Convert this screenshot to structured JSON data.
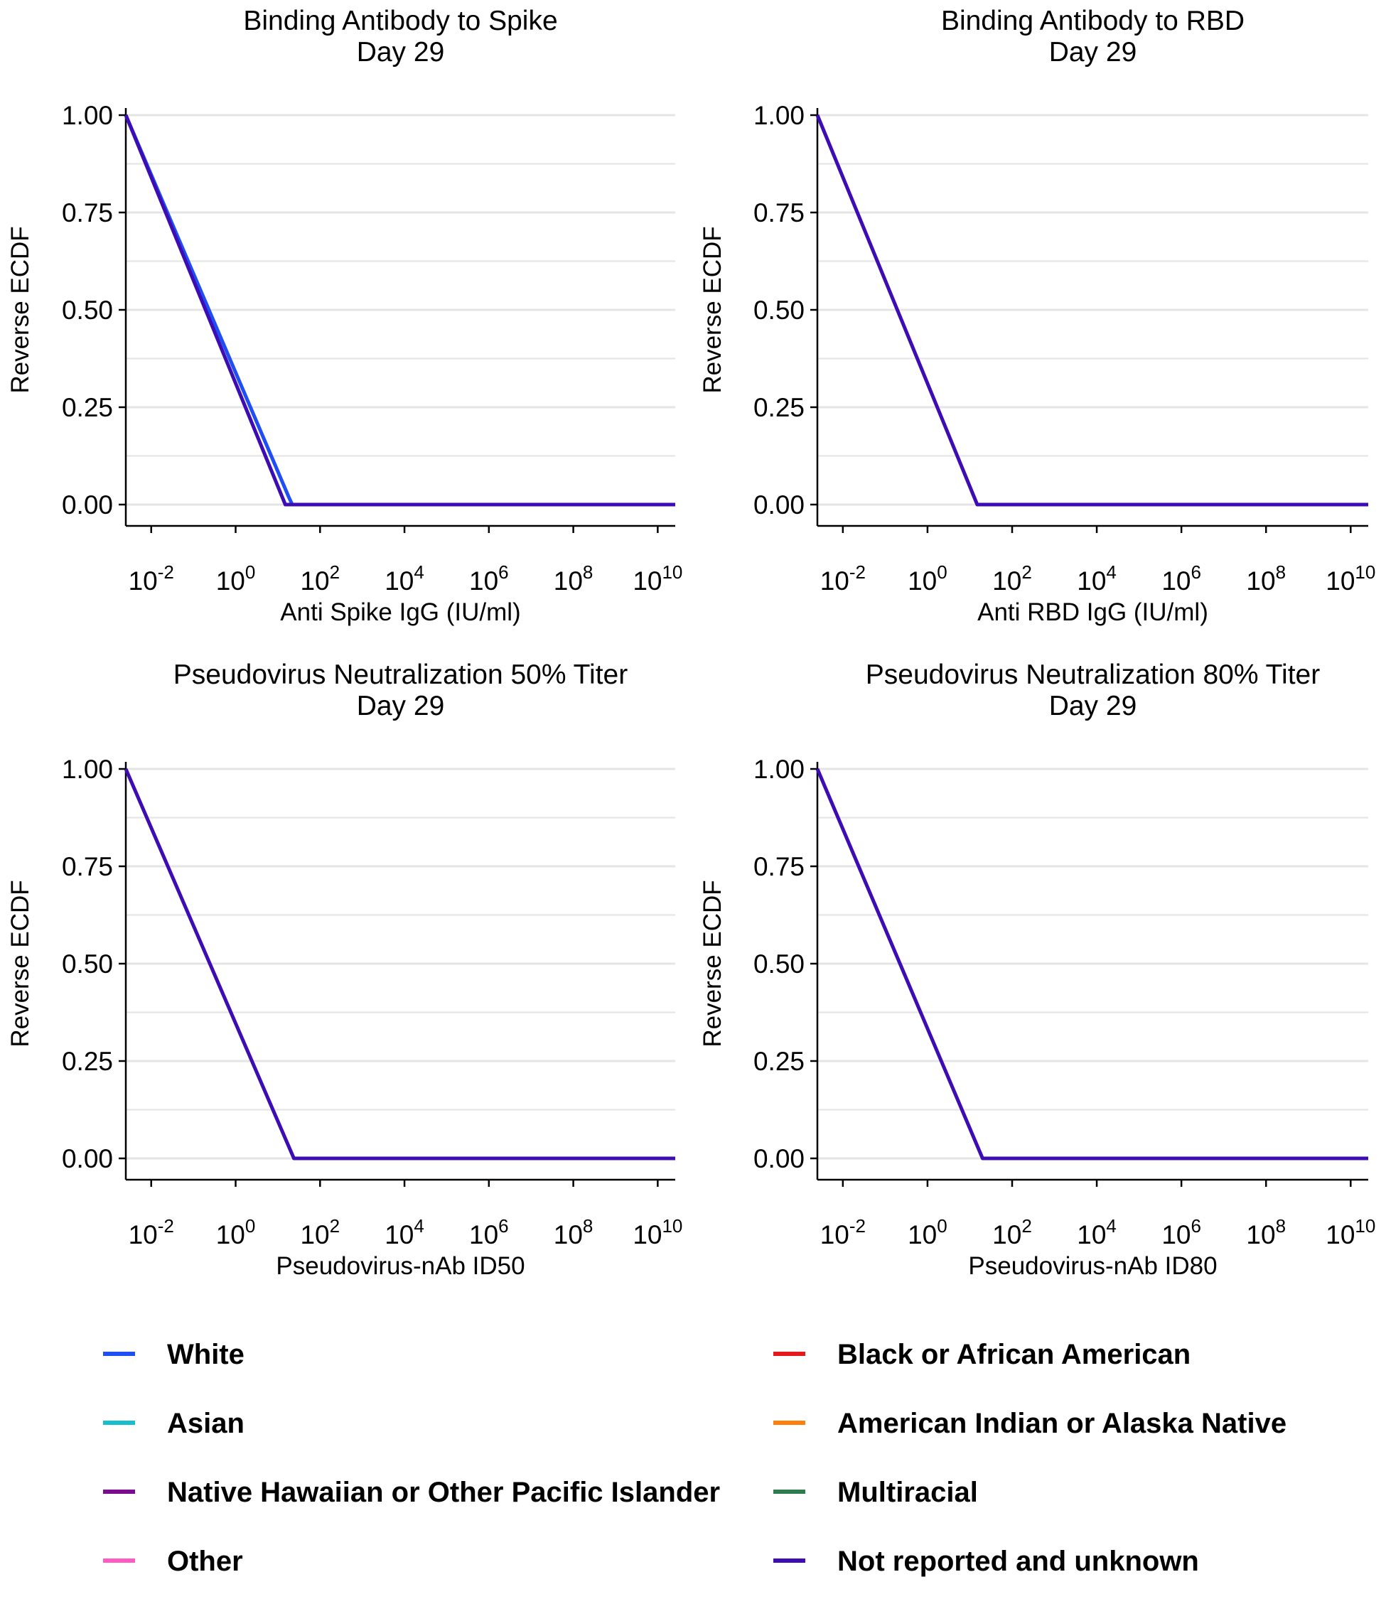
{
  "chart_data": [
    {
      "type": "line",
      "title": "Binding Antibody to Spike",
      "subtitle": "Day 29",
      "xlabel": "Anti Spike IgG (IU/ml)",
      "ylabel": "Reverse ECDF",
      "x_scale": "log10",
      "xlim": [
        0.0025,
        26000000000.0
      ],
      "ylim": [
        0,
        1
      ],
      "x_ticks": [
        0.01,
        1,
        100,
        10000,
        1000000,
        100000000,
        10000000000
      ],
      "x_tick_labels": [
        "10^-2",
        "10^0",
        "10^2",
        "10^4",
        "10^6",
        "10^8",
        "10^10"
      ],
      "y_ticks": [
        0,
        0.25,
        0.5,
        0.75,
        1
      ],
      "y_tick_labels": [
        "0.00",
        "0.25",
        "0.50",
        "0.75",
        "1.00"
      ],
      "grid": "horizontal",
      "series": [
        {
          "name": "White",
          "x": [
            0.0025,
            18,
            22,
            26000000000.0
          ],
          "y": [
            1,
            0.02,
            0,
            0
          ]
        },
        {
          "name": "Not reported and unknown",
          "x": [
            0.0025,
            15,
            26000000000.0
          ],
          "y": [
            1,
            0,
            0
          ]
        }
      ]
    },
    {
      "type": "line",
      "title": "Binding Antibody to RBD",
      "subtitle": "Day 29",
      "xlabel": "Anti RBD IgG (IU/ml)",
      "ylabel": "Reverse ECDF",
      "x_scale": "log10",
      "xlim": [
        0.0025,
        26000000000.0
      ],
      "ylim": [
        0,
        1
      ],
      "x_ticks": [
        0.01,
        1,
        100,
        10000,
        1000000,
        100000000,
        10000000000
      ],
      "x_tick_labels": [
        "10^-2",
        "10^0",
        "10^2",
        "10^4",
        "10^6",
        "10^8",
        "10^10"
      ],
      "y_ticks": [
        0,
        0.25,
        0.5,
        0.75,
        1
      ],
      "y_tick_labels": [
        "0.00",
        "0.25",
        "0.50",
        "0.75",
        "1.00"
      ],
      "grid": "horizontal",
      "series": [
        {
          "name": "Not reported and unknown",
          "x": [
            0.0025,
            15,
            26000000000.0
          ],
          "y": [
            1,
            0,
            0
          ]
        }
      ]
    },
    {
      "type": "line",
      "title": "Pseudovirus Neutralization 50% Titer",
      "subtitle": "Day 29",
      "xlabel": "Pseudovirus-nAb ID50",
      "ylabel": "Reverse ECDF",
      "x_scale": "log10",
      "xlim": [
        0.0025,
        26000000000.0
      ],
      "ylim": [
        0,
        1
      ],
      "x_ticks": [
        0.01,
        1,
        100,
        10000,
        1000000,
        100000000,
        10000000000
      ],
      "x_tick_labels": [
        "10^-2",
        "10^0",
        "10^2",
        "10^4",
        "10^6",
        "10^8",
        "10^10"
      ],
      "y_ticks": [
        0,
        0.25,
        0.5,
        0.75,
        1
      ],
      "y_tick_labels": [
        "0.00",
        "0.25",
        "0.50",
        "0.75",
        "1.00"
      ],
      "grid": "horizontal",
      "series": [
        {
          "name": "Not reported and unknown",
          "x": [
            0.0025,
            24,
            26000000000.0
          ],
          "y": [
            1,
            0,
            0
          ]
        }
      ]
    },
    {
      "type": "line",
      "title": "Pseudovirus Neutralization 80% Titer",
      "subtitle": "Day 29",
      "xlabel": "Pseudovirus-nAb ID80",
      "ylabel": "Reverse ECDF",
      "x_scale": "log10",
      "xlim": [
        0.0025,
        26000000000.0
      ],
      "ylim": [
        0,
        1
      ],
      "x_ticks": [
        0.01,
        1,
        100,
        10000,
        1000000,
        100000000,
        10000000000
      ],
      "x_tick_labels": [
        "10^-2",
        "10^0",
        "10^2",
        "10^4",
        "10^6",
        "10^8",
        "10^10"
      ],
      "y_ticks": [
        0,
        0.25,
        0.5,
        0.75,
        1
      ],
      "y_tick_labels": [
        "0.00",
        "0.25",
        "0.50",
        "0.75",
        "1.00"
      ],
      "grid": "horizontal",
      "series": [
        {
          "name": "Not reported and unknown",
          "x": [
            0.0025,
            20,
            26000000000.0
          ],
          "y": [
            1,
            0,
            0
          ]
        }
      ]
    }
  ],
  "legend": {
    "placement": "bottom",
    "items": [
      {
        "label": "White",
        "color": "#1f4ef5"
      },
      {
        "label": "Black or African American",
        "color": "#e31a1c"
      },
      {
        "label": "Asian",
        "color": "#17becf"
      },
      {
        "label": "American Indian or Alaska Native",
        "color": "#ff7f0e"
      },
      {
        "label": "Native Hawaiian or Other Pacific Islander",
        "color": "#7b0c8f"
      },
      {
        "label": "Multiracial",
        "color": "#2e7d4f"
      },
      {
        "label": "Other",
        "color": "#ff5bc0"
      },
      {
        "label": "Not reported and unknown",
        "color": "#3d0db3"
      }
    ]
  },
  "series_colors": {
    "White": "#1f4ef5",
    "Not reported and unknown": "#3d0db3"
  }
}
